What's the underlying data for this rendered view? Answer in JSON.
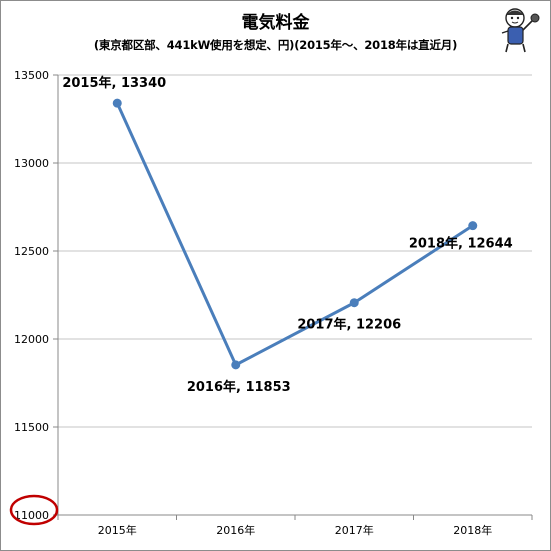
{
  "title": "電気料金",
  "subtitle": "(東京都区部、441kW使用を想定、円)(2015年〜、2018年は直近月)",
  "chart_data": {
    "type": "line",
    "title": "電気料金",
    "subtitle": "(東京都区部、441kW使用を想定、円)(2015年〜、2018年は直近月)",
    "categories": [
      "2015年",
      "2016年",
      "2017年",
      "2018年"
    ],
    "series": [
      {
        "values": [
          13340,
          11853,
          12206,
          12644
        ],
        "color": "#4a7ebb"
      }
    ],
    "data_labels": [
      "2015年, 13340",
      "2016年, 11853",
      "2017年, 12206",
      "2018年, 12644"
    ],
    "yticks": [
      11000,
      11500,
      12000,
      12500,
      13000,
      13500
    ],
    "ylim": [
      11000,
      13500
    ],
    "grid": "horizontal",
    "legend": "none",
    "annotation": {
      "type": "red-circle",
      "target": "11000",
      "color": "#c00000"
    }
  },
  "colors": {
    "line": "#4a7ebb",
    "grid": "#c6c6c6",
    "annotation": "#c00000"
  },
  "decoration": {
    "mascot_icon": "cartoon-reporter-mascot-icon"
  }
}
